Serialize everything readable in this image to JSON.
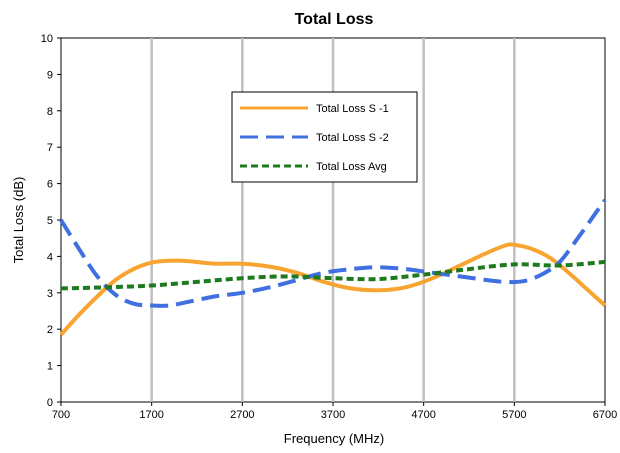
{
  "chart_data": {
    "type": "line",
    "title": "Total Loss",
    "xlabel": "Frequency (MHz)",
    "ylabel": "Total Loss (dB)",
    "xlim": [
      700,
      6700
    ],
    "ylim": [
      0,
      10
    ],
    "xticks": [
      700,
      1700,
      2700,
      3700,
      4700,
      5700,
      6700
    ],
    "yticks": [
      0,
      1,
      2,
      3,
      4,
      5,
      6,
      7,
      8,
      9,
      10
    ],
    "grid": "vertical",
    "legend_position": "upper-center",
    "series": [
      {
        "name": "Total Loss S -1",
        "color": "#F7A530",
        "style": "solid",
        "x": [
          700,
          900,
          1100,
          1300,
          1500,
          1700,
          1900,
          2100,
          2400,
          2700,
          3000,
          3300,
          3600,
          3900,
          4200,
          4500,
          4800,
          5100,
          5400,
          5600,
          5700,
          5900,
          6100,
          6300,
          6500,
          6700
        ],
        "y": [
          1.85,
          2.4,
          2.9,
          3.35,
          3.65,
          3.83,
          3.88,
          3.87,
          3.8,
          3.8,
          3.72,
          3.55,
          3.3,
          3.12,
          3.07,
          3.15,
          3.4,
          3.75,
          4.1,
          4.3,
          4.32,
          4.2,
          3.95,
          3.55,
          3.1,
          2.65
        ]
      },
      {
        "name": "Total Loss S -2",
        "color": "#3F6FE0",
        "style": "dashed",
        "x": [
          700,
          900,
          1100,
          1300,
          1500,
          1700,
          1900,
          2100,
          2400,
          2700,
          3000,
          3300,
          3600,
          3900,
          4200,
          4500,
          4800,
          5100,
          5400,
          5600,
          5800,
          6000,
          6200,
          6400,
          6600,
          6700
        ],
        "y": [
          5.0,
          4.2,
          3.45,
          2.95,
          2.7,
          2.65,
          2.65,
          2.75,
          2.9,
          3.0,
          3.15,
          3.35,
          3.55,
          3.65,
          3.7,
          3.65,
          3.55,
          3.45,
          3.35,
          3.3,
          3.32,
          3.5,
          3.85,
          4.5,
          5.2,
          5.55
        ]
      },
      {
        "name": "Total Loss Avg",
        "color": "#1E7A1E",
        "style": "dotted",
        "x": [
          700,
          1200,
          1700,
          2200,
          2700,
          3200,
          3700,
          4200,
          4700,
          5200,
          5700,
          6200,
          6700
        ],
        "y": [
          3.12,
          3.15,
          3.2,
          3.3,
          3.4,
          3.45,
          3.4,
          3.38,
          3.5,
          3.65,
          3.78,
          3.75,
          3.85
        ]
      }
    ]
  }
}
